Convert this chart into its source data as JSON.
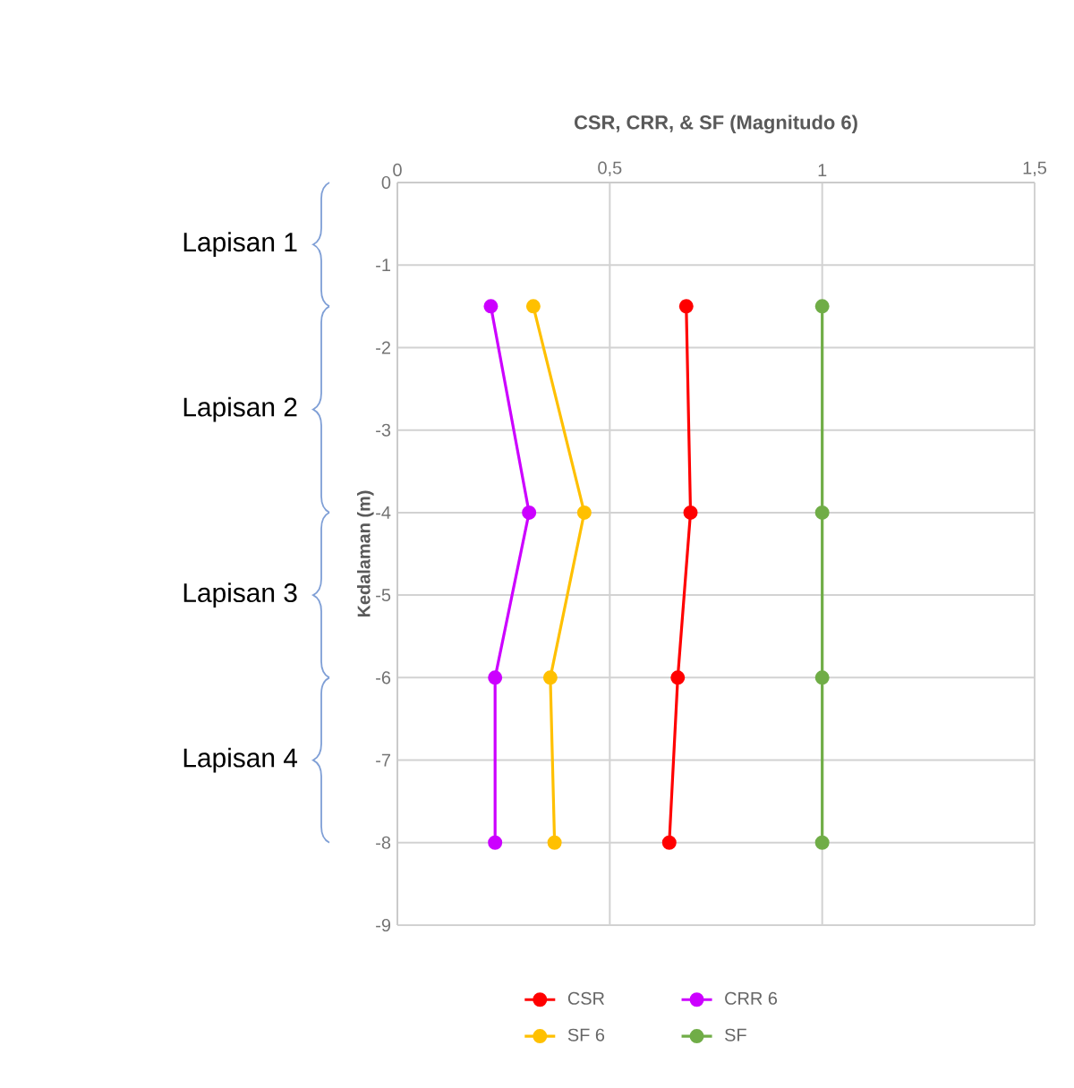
{
  "chart_data": {
    "type": "line",
    "title": "CSR, CRR, & SF (Magnitudo 6)",
    "ylabel": "Kedalaman (m)",
    "series": [
      {
        "name": "CSR",
        "color": "#ff0000",
        "x": [
          0.68,
          0.69,
          0.66,
          0.64
        ],
        "values": [
          -1.5,
          -4,
          -6,
          -8
        ]
      },
      {
        "name": "CRR 6",
        "color": "#cc00ff",
        "x": [
          0.22,
          0.31,
          0.23,
          0.23
        ],
        "values": [
          -1.5,
          -4,
          -6,
          -8
        ]
      },
      {
        "name": "SF 6",
        "color": "#ffc000",
        "x": [
          0.32,
          0.44,
          0.36,
          0.37
        ],
        "values": [
          -1.5,
          -4,
          -6,
          -8
        ]
      },
      {
        "name": "SF",
        "color": "#70ad47",
        "x": [
          1,
          1,
          1,
          1
        ],
        "values": [
          -1.5,
          -4,
          -6,
          -8
        ]
      }
    ],
    "xlim": [
      0,
      1.5
    ],
    "xticks": [
      0,
      {
        "value": 0.5,
        "label": "0,5"
      },
      1,
      {
        "value": 1.5,
        "label": "1,5"
      }
    ],
    "ylim": [
      -9,
      0
    ],
    "yticks": [
      0,
      -1,
      -2,
      -3,
      -4,
      -5,
      -6,
      -7,
      -8,
      -9
    ],
    "annotations": [
      "Lapisan 1",
      "Lapisan 2",
      "Lapisan 3",
      "Lapisan 4"
    ],
    "grid": true,
    "legend": "bottom",
    "marker": "circle",
    "line_style": "solid"
  }
}
